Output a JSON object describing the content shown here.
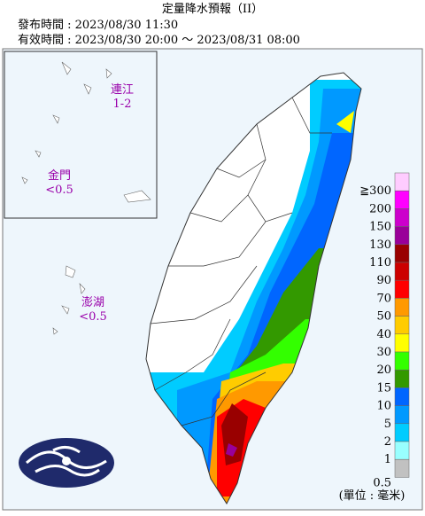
{
  "header": {
    "title": "定量降水預報（II）",
    "issued": "發布時間 : 2023/08/30 11:30",
    "valid": "有效時間 : 2023/08/30 20:00 ～ 2023/08/31 08:00"
  },
  "islands": [
    {
      "name": "連江",
      "value": "1-2"
    },
    {
      "name": "金門",
      "value": "<0.5"
    },
    {
      "name": "澎湖",
      "value": "<0.5"
    }
  ],
  "legend": {
    "items": [
      {
        "label": "≧300",
        "color": "#ffccff"
      },
      {
        "label": "200",
        "color": "#ff00ff"
      },
      {
        "label": "150",
        "color": "#cc00cc"
      },
      {
        "label": "130",
        "color": "#990099"
      },
      {
        "label": "110",
        "color": "#990000"
      },
      {
        "label": "90",
        "color": "#cc0000"
      },
      {
        "label": "70",
        "color": "#ff0000"
      },
      {
        "label": "50",
        "color": "#ff9900"
      },
      {
        "label": "40",
        "color": "#ffcc00"
      },
      {
        "label": "30",
        "color": "#ffff00"
      },
      {
        "label": "20",
        "color": "#33ff00"
      },
      {
        "label": "15",
        "color": "#339900"
      },
      {
        "label": "10",
        "color": "#0066ff"
      },
      {
        "label": "5",
        "color": "#0099ff"
      },
      {
        "label": "2",
        "color": "#00ccff"
      },
      {
        "label": "1",
        "color": "#99ffff"
      },
      {
        "label": "0.5",
        "color": "#c1c1c1"
      }
    ],
    "unit": "(單位 : 毫米)"
  }
}
